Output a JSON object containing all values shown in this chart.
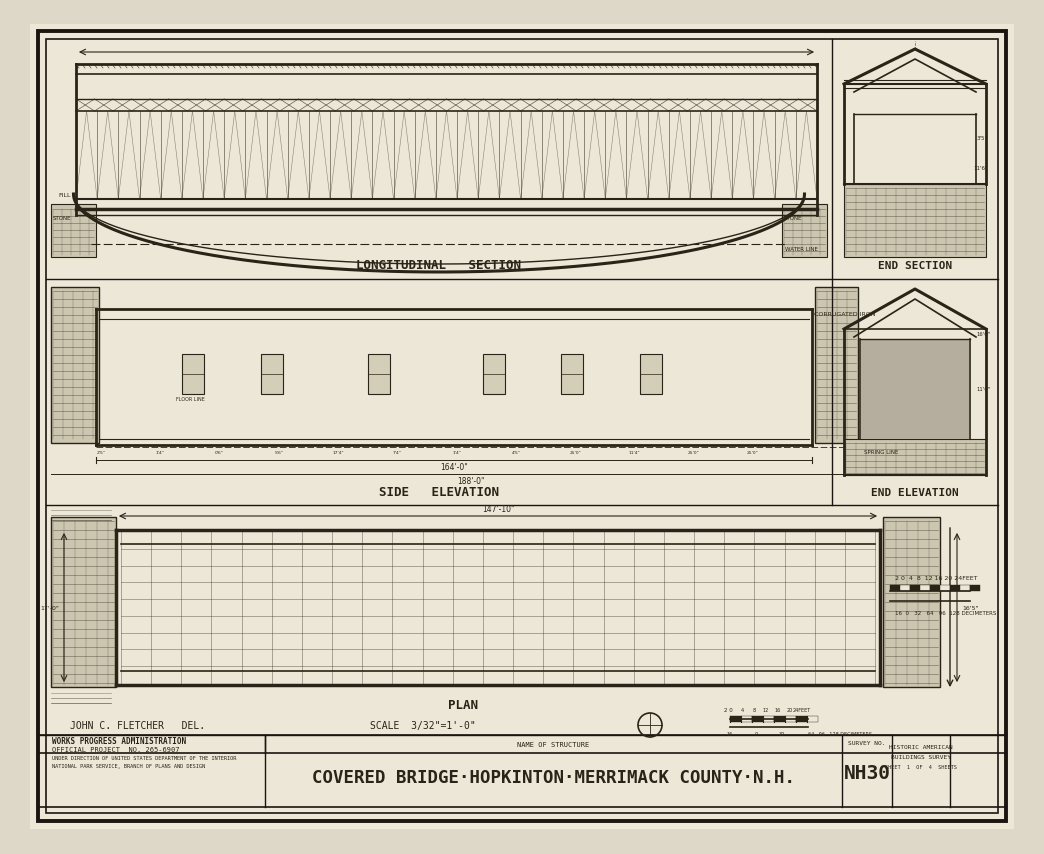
{
  "bg_color": "#ddd8c8",
  "paper_color": "#e8e3d3",
  "line_color": "#2a2418",
  "border_color": "#1a1510",
  "title": "COVERED BRIDGE·HOPKINTON·MERRIMACK COUNTY·N.H.",
  "survey_no": "NH30",
  "sheet_info": "SHEET  1  OF  4  SHEETS",
  "wpa_line1": "WORKS PROGRESS ADMINISTRATION",
  "wpa_line2": "OFFICIAL PROJECT  NO. 265-6907",
  "wpa_line3": "UNDER DIRECTION OF UNITED STATES DEPARTMENT OF THE INTERIOR",
  "wpa_line4": "NATIONAL PARK SERVICE, BRANCH OF PLANS AND DESIGN",
  "name_of_structure": "NAME OF STRUCTURE",
  "survey_no_label": "SURVEY NO.",
  "historic_line1": "HISTORIC AMERICAN",
  "historic_line2": "BUILDINGS SURVEY",
  "drafter": "JOHN C. FLETCHER   DEL.",
  "scale_note": "SCALE  3/32\"=1'-0\"",
  "label_long": "LONGITUDINAL   SECTION",
  "label_side": "SIDE   ELEVATION",
  "label_plan": "PLAN",
  "label_end_sec": "END SECTION",
  "label_end_elev": "END ELEVATION",
  "corrugated_iron": "CORRUGATED IRON",
  "spring_line": "SPRING LINE",
  "water_line": "WATER LINE",
  "dim_164": "164'-0\"",
  "dim_188": "188'-0\"",
  "dim_147": "147'-10\"",
  "dim_17": "17'-0\"",
  "dim_165": "16'5\"",
  "fill_label": "FILL",
  "stone_label": "STONE"
}
